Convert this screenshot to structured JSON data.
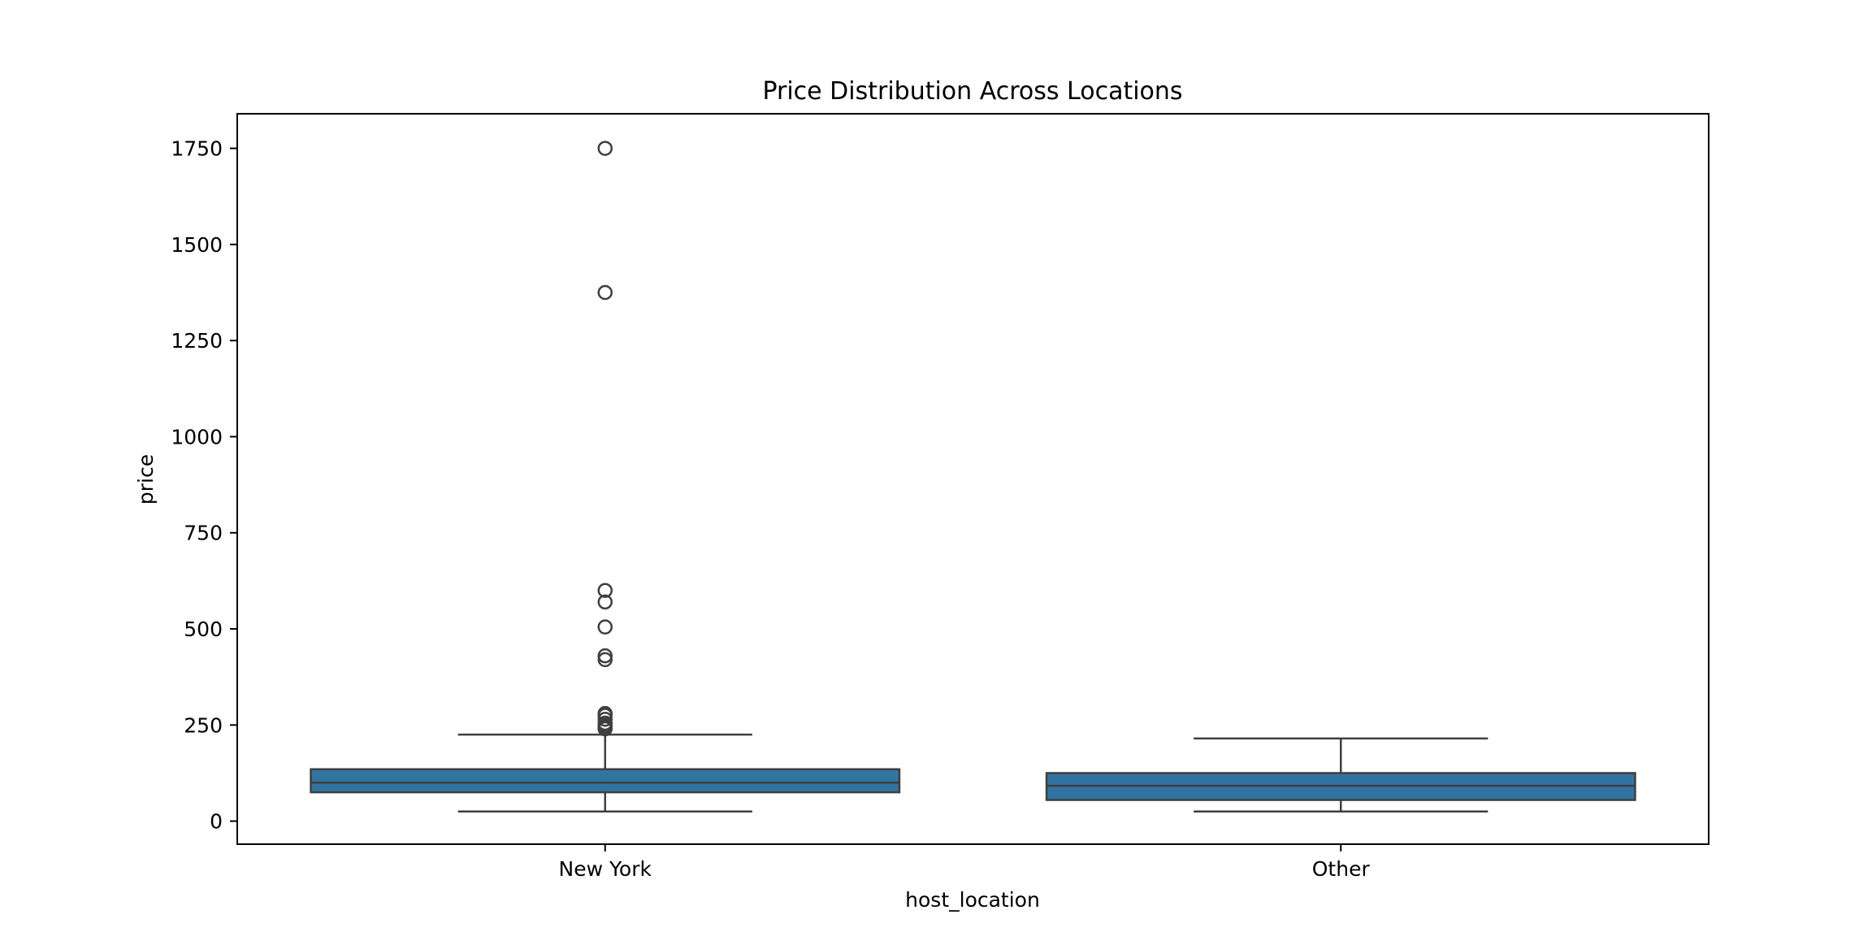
{
  "chart_data": {
    "type": "box",
    "title": "Price Distribution Across Locations",
    "xlabel": "host_location",
    "ylabel": "price",
    "ylim": [
      -60,
      1840
    ],
    "yticks": [
      0,
      250,
      500,
      750,
      1000,
      1250,
      1500,
      1750
    ],
    "ytick_labels": [
      "0",
      "250",
      "500",
      "750",
      "1000",
      "1250",
      "1500",
      "1750"
    ],
    "grid": false,
    "legend": "none",
    "box_color": "#3274a1",
    "line_color": "#3f3f3f",
    "categories": [
      "New York",
      "Other"
    ],
    "boxes": [
      {
        "category": "New York",
        "whisker_low": 25,
        "q1": 75,
        "median": 100,
        "q3": 135,
        "whisker_high": 225,
        "outliers": [
          240,
          245,
          250,
          255,
          265,
          275,
          280,
          420,
          430,
          505,
          570,
          600,
          1375,
          1750
        ]
      },
      {
        "category": "Other",
        "whisker_low": 25,
        "q1": 55,
        "median": 92,
        "q3": 125,
        "whisker_high": 215,
        "outliers": []
      }
    ]
  }
}
